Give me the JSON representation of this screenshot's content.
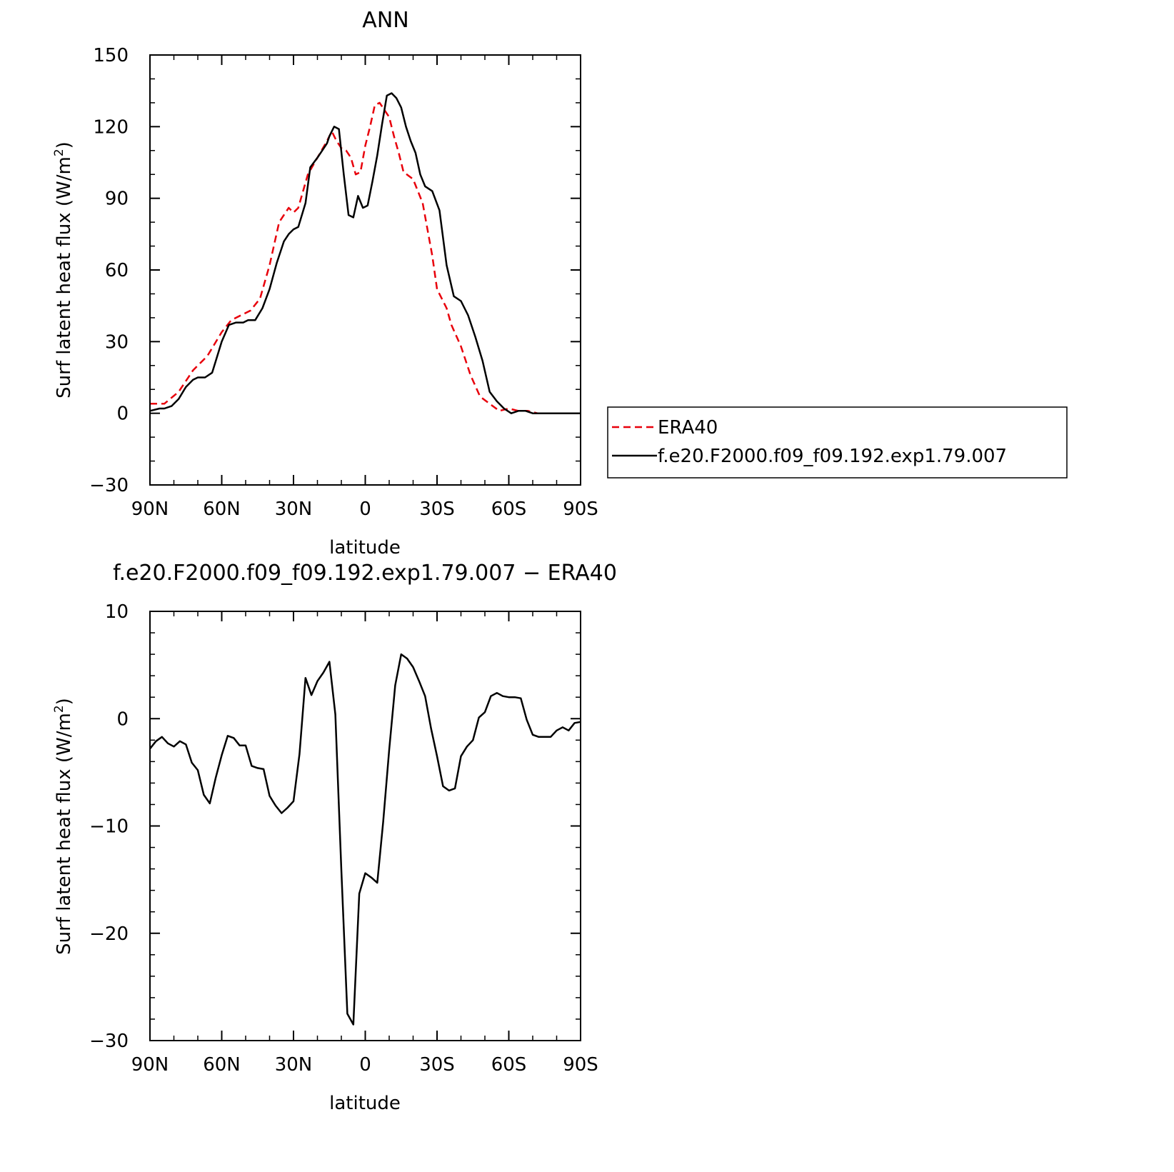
{
  "chart_data": [
    {
      "type": "line",
      "title": "ANN",
      "xlabel": "latitude",
      "ylabel": "Surf latent heat flux (W/m",
      "ylabel_sup": "2",
      "ylabel_close": ")",
      "x_ticks": [
        -90,
        -60,
        -30,
        0,
        30,
        60,
        90
      ],
      "x_tick_labels": [
        "90N",
        "60N",
        "30N",
        "0",
        "30S",
        "60S",
        "90S"
      ],
      "y_ticks": [
        -30,
        0,
        30,
        60,
        90,
        120,
        150
      ],
      "y_tick_labels": [
        "−30",
        "0",
        "30",
        "60",
        "90",
        "120",
        "150"
      ],
      "xlim": [
        -90,
        90
      ],
      "ylim": [
        -30,
        150
      ],
      "legend_position": "right",
      "series": [
        {
          "name": "ERA40",
          "color": "#e8000b",
          "dash": "dashed",
          "x": [
            -90,
            -84,
            -78,
            -72,
            -66,
            -60,
            -56,
            -52,
            -48,
            -44,
            -40,
            -36,
            -32,
            -30,
            -28,
            -24,
            -20,
            -16,
            -14,
            -12,
            -10,
            -8,
            -6,
            -4,
            -2,
            0,
            2,
            4,
            6,
            8,
            10,
            12,
            14,
            16,
            20,
            24,
            28,
            30,
            34,
            36,
            40,
            44,
            48,
            52,
            56,
            60,
            64,
            68,
            72,
            76,
            80,
            84,
            88,
            90
          ],
          "values": [
            4,
            4,
            9,
            18,
            24,
            34,
            39,
            41,
            43,
            48,
            62,
            80,
            86,
            84,
            86,
            100,
            107,
            114,
            118,
            114,
            111,
            110,
            107,
            100,
            101,
            112,
            120,
            129,
            130,
            127,
            124,
            116,
            109,
            101,
            98,
            88,
            66,
            52,
            44,
            37,
            28,
            16,
            7,
            4,
            1,
            2,
            1,
            1,
            0,
            0,
            0,
            0,
            0,
            0
          ]
        },
        {
          "name": "f.e20.F2000.f09_f09.192.exp1.79.007",
          "color": "#000000",
          "dash": "solid",
          "x": [
            -90,
            -86,
            -84,
            -81,
            -78,
            -75,
            -72,
            -70,
            -67,
            -64,
            -60,
            -57,
            -54,
            -51,
            -49,
            -46,
            -43,
            -40,
            -37,
            -34,
            -32,
            -30,
            -28,
            -25,
            -23,
            -20,
            -18,
            -16,
            -15,
            -13,
            -11,
            -9,
            -7,
            -5,
            -3,
            -1,
            1,
            3,
            5,
            7,
            9,
            11,
            13,
            15,
            17,
            19,
            21,
            23,
            25,
            28,
            31,
            34,
            37,
            40,
            43,
            46,
            49,
            52,
            55,
            58,
            61,
            64,
            67,
            70,
            73,
            76,
            79,
            82,
            85,
            88,
            90
          ],
          "values": [
            1,
            2,
            2,
            3,
            6,
            11,
            14,
            15,
            15,
            17,
            30,
            37,
            38,
            38,
            39,
            39,
            44,
            52,
            63,
            72,
            75,
            77,
            78,
            88,
            103,
            107,
            110,
            113,
            116,
            120,
            119,
            100,
            83,
            82,
            91,
            86,
            87,
            97,
            108,
            121,
            133,
            134,
            132,
            128,
            120,
            114,
            109,
            100,
            95,
            93,
            85,
            62,
            49,
            47,
            41,
            32,
            22,
            9,
            5,
            2,
            0,
            1,
            1,
            0,
            0,
            0,
            0,
            0,
            0,
            0,
            0
          ]
        }
      ]
    },
    {
      "type": "line",
      "title": "f.e20.F2000.f09_f09.192.exp1.79.007 − ERA40",
      "xlabel": "latitude",
      "ylabel": "Surf latent heat flux (W/m",
      "ylabel_sup": "2",
      "ylabel_close": ")",
      "x_ticks": [
        -90,
        -60,
        -30,
        0,
        30,
        60,
        90
      ],
      "x_tick_labels": [
        "90N",
        "60N",
        "30N",
        "0",
        "30S",
        "60S",
        "90S"
      ],
      "y_ticks": [
        -30,
        -20,
        -10,
        0,
        10
      ],
      "y_tick_labels": [
        "−30",
        "−20",
        "−10",
        "0",
        "10"
      ],
      "xlim": [
        -90,
        90
      ],
      "ylim": [
        -30,
        10
      ],
      "series": [
        {
          "color": "#000000",
          "dash": "solid",
          "x": [
            -90,
            -87.5,
            -85,
            -82.5,
            -80,
            -77.5,
            -75,
            -72.5,
            -70,
            -67.5,
            -65,
            -62.5,
            -60,
            -57.5,
            -55,
            -52.5,
            -50,
            -47.5,
            -45,
            -42.5,
            -40,
            -37.5,
            -35,
            -32.5,
            -30,
            -27.5,
            -25,
            -22.5,
            -20,
            -17.5,
            -15,
            -12.5,
            -10,
            -7.5,
            -5,
            -2.5,
            0,
            2.5,
            5,
            7.5,
            10,
            12.5,
            15,
            17.5,
            20,
            22.5,
            25,
            27.5,
            30,
            32.5,
            35,
            37.5,
            40,
            42.5,
            45,
            47.5,
            50,
            52.5,
            55,
            57.5,
            60,
            62.5,
            65,
            67.5,
            70,
            72.5,
            75,
            77.5,
            80,
            82.5,
            85,
            87.5,
            90
          ],
          "values": [
            -2.8,
            -2.1,
            -1.7,
            -2.3,
            -2.6,
            -2.1,
            -2.4,
            -4.1,
            -4.8,
            -7.1,
            -7.9,
            -5.5,
            -3.4,
            -1.6,
            -1.8,
            -2.5,
            -2.5,
            -4.4,
            -4.6,
            -4.7,
            -7.2,
            -8.1,
            -8.8,
            -8.3,
            -7.7,
            -3.3,
            3.8,
            2.2,
            3.5,
            4.3,
            5.3,
            0.4,
            -14.1,
            -27.5,
            -28.5,
            -16.3,
            -14.4,
            -14.8,
            -15.3,
            -9.6,
            -2.9,
            3.1,
            6.0,
            5.6,
            4.8,
            3.5,
            2.1,
            -0.9,
            -3.5,
            -6.3,
            -6.7,
            -6.5,
            -3.5,
            -2.6,
            -2.0,
            0.1,
            0.6,
            2.1,
            2.4,
            2.1,
            2.0,
            2.0,
            1.9,
            -0.1,
            -1.5,
            -1.7,
            -1.7,
            -1.7,
            -1.1,
            -0.8,
            -1.1,
            -0.4,
            -0.3
          ]
        }
      ]
    }
  ]
}
